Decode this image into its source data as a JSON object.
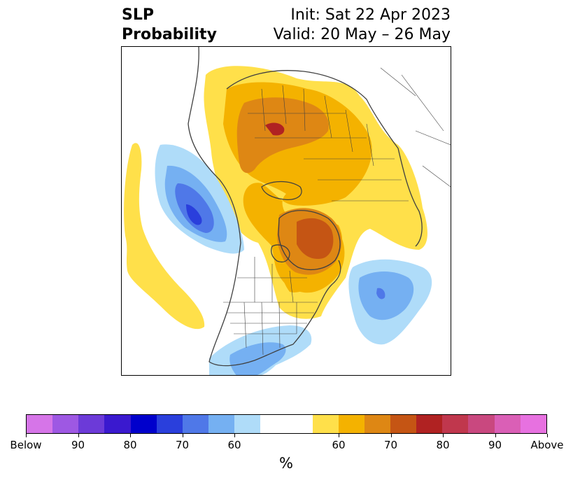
{
  "title": {
    "left_line1": "SLP",
    "left_line2": "Probability",
    "right_line1": "Init: Sat 22 Apr 2023",
    "right_line2": "Valid: 20 May – 26 May"
  },
  "colorbar": {
    "unit": "%",
    "colors": [
      "#d675e8",
      "#9e58e3",
      "#6c3ad8",
      "#3a19cf",
      "#0000cc",
      "#2a3fdc",
      "#4f78e8",
      "#75b0f2",
      "#afdcf9",
      "#ffffff",
      "#ffffff",
      "#ffe04a",
      "#f4b200",
      "#de8714",
      "#c55514",
      "#b02222",
      "#c0374d",
      "#c9487f",
      "#da5fb6",
      "#e771e0"
    ],
    "ticks": [
      {
        "label": "Below",
        "frac": 0.0
      },
      {
        "label": "90",
        "frac": 0.1
      },
      {
        "label": "80",
        "frac": 0.2
      },
      {
        "label": "70",
        "frac": 0.3
      },
      {
        "label": "60",
        "frac": 0.4
      },
      {
        "label": "60",
        "frac": 0.6
      },
      {
        "label": "70",
        "frac": 0.7
      },
      {
        "label": "80",
        "frac": 0.8
      },
      {
        "label": "90",
        "frac": 0.9
      },
      {
        "label": "Above",
        "frac": 1.0
      }
    ]
  },
  "map_colors": {
    "above_60": "#ffe04a",
    "above_65": "#f4b200",
    "above_70": "#de8714",
    "above_75": "#c55514",
    "above_80": "#b02222",
    "below_60": "#afdcf9",
    "below_65": "#75b0f2",
    "below_70": "#4f78e8",
    "below_75": "#2a3fdc",
    "border": "#404040"
  }
}
